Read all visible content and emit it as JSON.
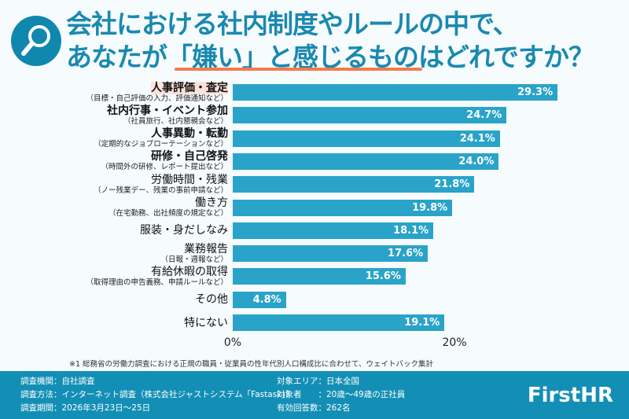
{
  "header": {
    "title_line1": "会社における社内制度やルールの中で、",
    "title_line2": "あなたが「嫌い」と感じるものはどれですか？",
    "icon": "magnifier-icon"
  },
  "chart_data": {
    "type": "bar",
    "orientation": "horizontal",
    "xlim": [
      0,
      30
    ],
    "x_ticks": [
      "0%",
      "20%"
    ],
    "categories": [
      {
        "label": "人事評価・査定",
        "sub": "（目標・自己評価の入力、評価通知など）",
        "bold": true,
        "highlight": true
      },
      {
        "label": "社内行事・イベント参加",
        "sub": "（社員旅行、社内懇親会など）",
        "bold": true
      },
      {
        "label": "人事異動・転勤",
        "sub": "（定期的なジョブローテーションなど）",
        "bold": true
      },
      {
        "label": "研修・自己啓発",
        "sub": "（時間外の研修、レポート提出など）",
        "bold": true
      },
      {
        "label": "労働時間・残業",
        "sub": "（ノー残業デー、残業の事前申請など）"
      },
      {
        "label": "働き方",
        "sub": "（在宅勤務、出社頻度の規定など）"
      },
      {
        "label": "服装・身だしなみ",
        "sub": ""
      },
      {
        "label": "業務報告",
        "sub": "（日報・週報など）"
      },
      {
        "label": "有給休暇の取得",
        "sub": "（取得理由の申告義務、申請ルールなど）"
      },
      {
        "label": "その他",
        "sub": ""
      },
      {
        "label": "特にない",
        "sub": ""
      }
    ],
    "values": [
      29.3,
      24.7,
      24.1,
      24.0,
      21.8,
      19.8,
      18.1,
      17.6,
      15.6,
      4.8,
      19.1
    ],
    "value_labels": [
      "29.3%",
      "24.7%",
      "24.1%",
      "24.0%",
      "21.8%",
      "19.8%",
      "18.1%",
      "17.6%",
      "15.6%",
      "4.8%",
      "19.1%"
    ],
    "bar_color": "#2aa3c9"
  },
  "note": "※1 総務省の労働力調査における正規の職員・従業員の性年代別人口構成比に合わせて、ウェイトバック集計",
  "footer": {
    "left": [
      "調査機関：自社調査",
      "調査方法：インターネット調査（株式会社ジャストシステム「Fastask」）",
      "調査期間：2026年3月23日〜25日"
    ],
    "right": [
      "対象エリア：日本全国",
      "対象者　　：20歳〜49歳の正社員",
      "有効回答数：262名"
    ],
    "logo": "FirstHR"
  }
}
